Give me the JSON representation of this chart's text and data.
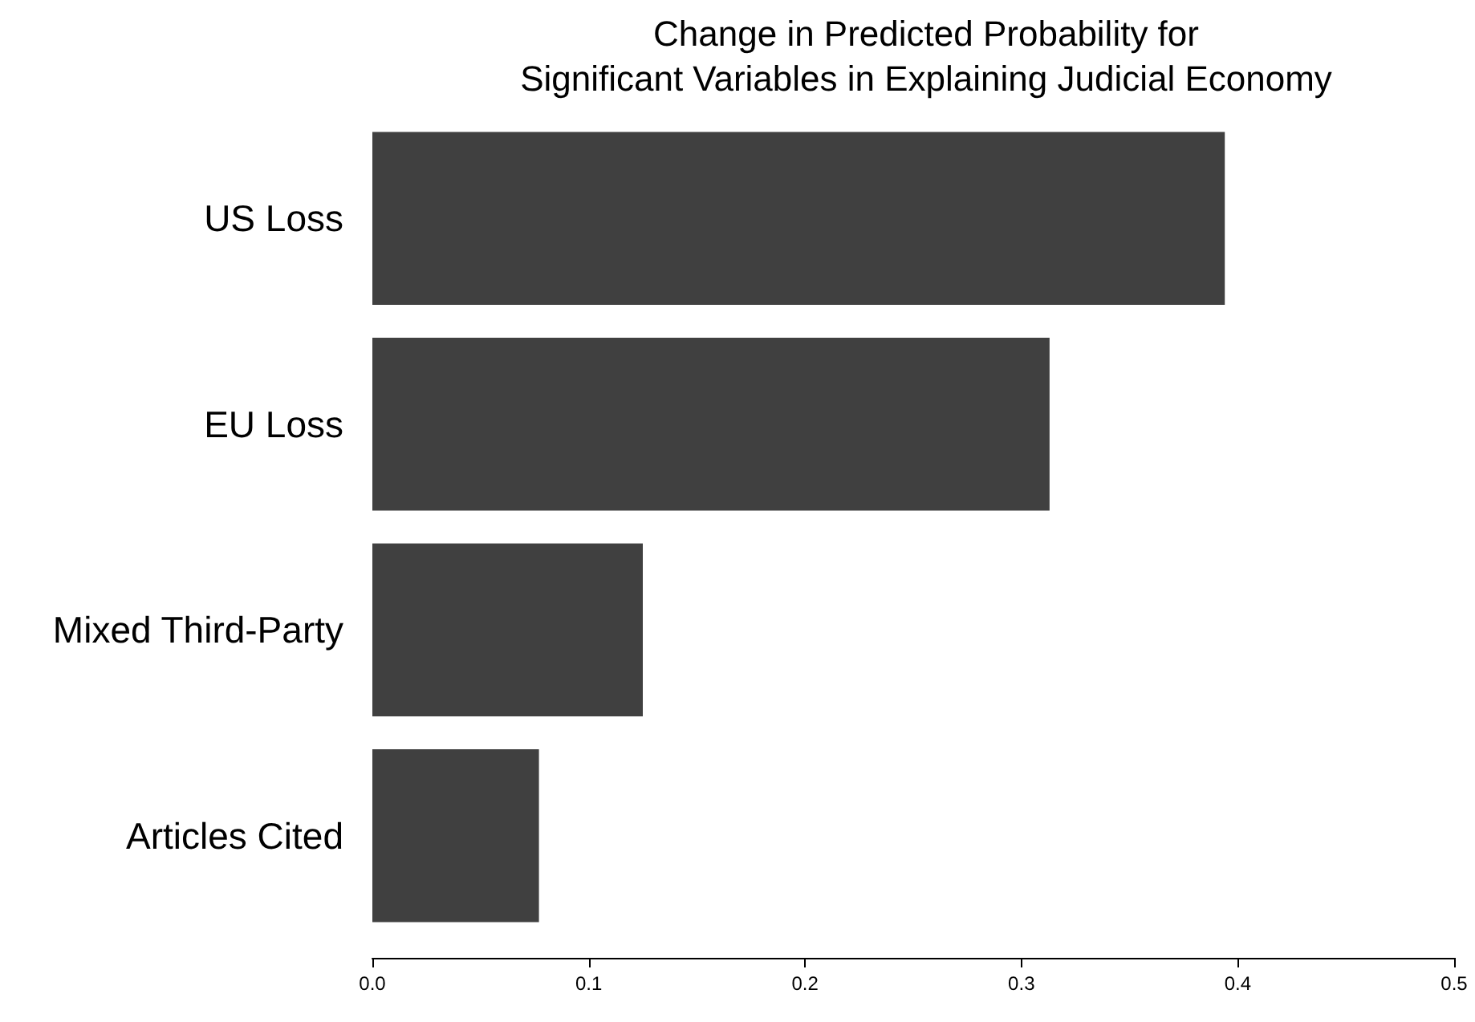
{
  "chart_data": {
    "type": "bar",
    "orientation": "horizontal",
    "title": "Change in Predicted Probability for\nSignificant Variables in Explaining Judicial Economy",
    "categories": [
      "US Loss",
      "EU Loss",
      "Mixed Third-Party",
      "Articles Cited"
    ],
    "values": [
      0.394,
      0.313,
      0.125,
      0.077
    ],
    "color": "#404040",
    "xlim": [
      0,
      0.5
    ],
    "xticks": [
      {
        "value": 0,
        "label": "0.0"
      },
      0.1,
      0.2,
      0.3,
      0.4,
      0.5
    ],
    "grid": false
  }
}
